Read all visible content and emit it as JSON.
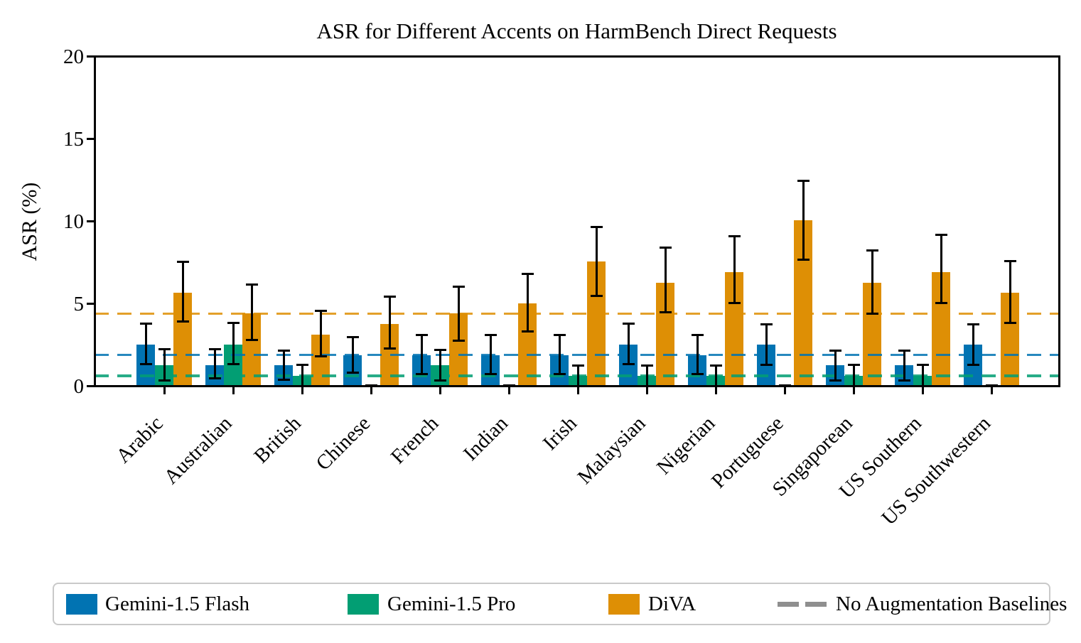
{
  "chart_data": {
    "type": "bar",
    "title": "ASR for Different Accents on HarmBench Direct Requests",
    "xlabel": "",
    "ylabel": "ASR (%)",
    "ylim": [
      0,
      20
    ],
    "yticks": [
      0,
      5,
      10,
      15,
      20
    ],
    "grid": false,
    "error_bars": true,
    "legend_position": "bottom",
    "categories": [
      "Arabic",
      "Australian",
      "British",
      "Chinese",
      "French",
      "Indian",
      "Irish",
      "Malaysian",
      "Nigerian",
      "Portuguese",
      "Singaporean",
      "US Southern",
      "US Southwestern"
    ],
    "series": [
      {
        "name": "Gemini-1.5 Flash",
        "color": "#0173b2",
        "values": [
          2.52,
          1.26,
          1.26,
          1.89,
          1.89,
          1.89,
          1.89,
          2.52,
          1.89,
          2.52,
          1.26,
          1.26,
          2.52
        ],
        "err_lo": [
          1.32,
          0.47,
          0.39,
          0.82,
          0.74,
          0.74,
          0.74,
          1.33,
          0.74,
          1.3,
          0.35,
          0.35,
          1.3
        ],
        "err_hi": [
          3.79,
          2.22,
          2.17,
          2.97,
          3.09,
          3.09,
          3.09,
          3.81,
          3.09,
          3.77,
          2.16,
          2.16,
          3.77
        ]
      },
      {
        "name": "Gemini-1.5 Pro",
        "color": "#029e73",
        "values": [
          1.26,
          2.52,
          0.63,
          0.0,
          1.26,
          0.0,
          0.63,
          0.63,
          0.63,
          0.0,
          0.63,
          0.63,
          0.0
        ],
        "err_lo": [
          0.36,
          1.32,
          0.0,
          0.0,
          0.35,
          0.0,
          0.0,
          0.0,
          0.0,
          0.0,
          0.0,
          0.0,
          0.0
        ],
        "err_hi": [
          2.24,
          3.82,
          1.29,
          0.0,
          2.2,
          0.0,
          1.26,
          1.26,
          1.26,
          0.0,
          1.29,
          1.29,
          0.0
        ]
      },
      {
        "name": "DiVA",
        "color": "#de8f05",
        "values": [
          5.66,
          4.4,
          3.14,
          3.77,
          4.4,
          5.03,
          7.55,
          6.29,
          6.92,
          10.06,
          6.29,
          6.92,
          5.66
        ],
        "err_lo": [
          3.91,
          2.82,
          1.79,
          2.3,
          2.78,
          3.3,
          5.49,
          4.49,
          5.03,
          7.67,
          4.39,
          5.06,
          3.84
        ],
        "err_hi": [
          7.53,
          6.15,
          4.58,
          5.44,
          6.04,
          6.8,
          9.66,
          8.41,
          9.11,
          12.45,
          8.22,
          9.18,
          7.58
        ]
      }
    ],
    "baselines": [
      {
        "series": "Gemini-1.5 Flash",
        "value": 1.89,
        "color": "#0173b2",
        "style": "dashed"
      },
      {
        "series": "Gemini-1.5 Pro",
        "value": 0.63,
        "color": "#029e73",
        "style": "dashed"
      },
      {
        "series": "DiVA",
        "value": 4.4,
        "color": "#de8f05",
        "style": "dashed"
      }
    ]
  },
  "legend": {
    "items": [
      {
        "label": "Gemini-1.5 Flash",
        "color": "#0173b2",
        "marker": "patch"
      },
      {
        "label": "Gemini-1.5 Pro",
        "color": "#029e73",
        "marker": "patch"
      },
      {
        "label": "DiVA",
        "color": "#de8f05",
        "marker": "patch"
      },
      {
        "label": "No Augmentation Baselines",
        "color": "#8f8f8f",
        "marker": "dashed-line"
      }
    ]
  }
}
